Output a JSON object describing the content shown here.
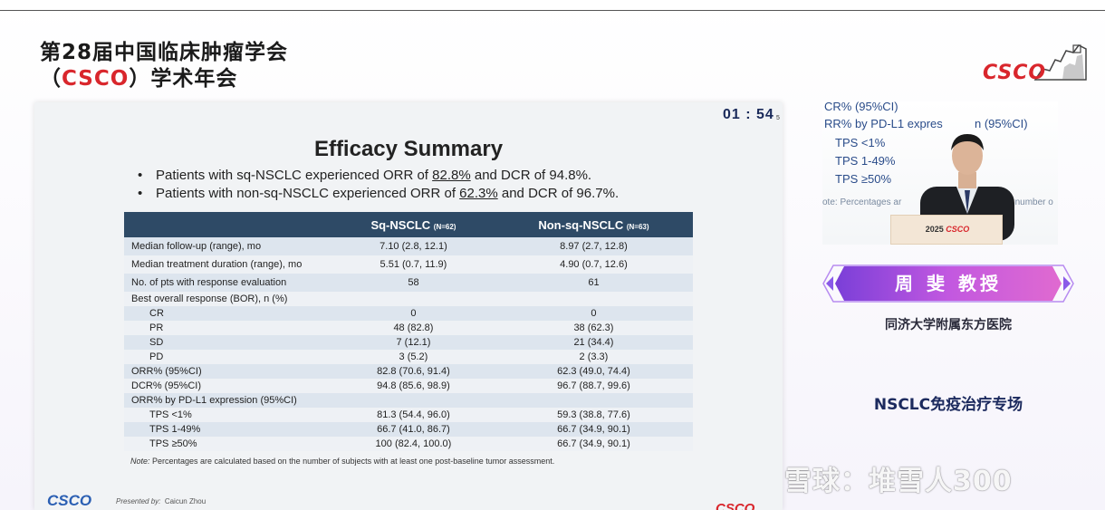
{
  "header": {
    "line1": "第28届中国临床肿瘤学会",
    "line2_paren_open": "（",
    "line2_brand": "CSCO",
    "line2_paren_close": "）",
    "line2_rest": "学术年会",
    "logo_text": "CSCO"
  },
  "slide": {
    "timer": "01 : 54",
    "timer_sub": "5",
    "title": "Efficacy Summary",
    "bullets": [
      {
        "pre": "Patients with sq-NSCLC experienced ORR of ",
        "orr": "82.8%",
        "post": " and DCR of 94.8%."
      },
      {
        "pre": "Patients with non-sq-NSCLC experienced ORR of ",
        "orr": "62.3%",
        "post": " and DCR of 96.7%."
      }
    ],
    "table": {
      "headers": {
        "col2": "Sq-NSCLC",
        "col2_n": "(N=62)",
        "col3": "Non-sq-NSCLC",
        "col3_n": "(N=63)"
      },
      "rows": [
        {
          "label": "Median follow-up (range), mo",
          "sq": "7.10 (2.8, 12.1)",
          "nonsq": "8.97 (2.7, 12.8)"
        },
        {
          "label": "Median treatment duration (range), mo",
          "sq": "5.51 (0.7, 11.9)",
          "nonsq": "4.90 (0.7, 12.6)"
        },
        {
          "label": "No. of pts with response evaluation",
          "sq": "58",
          "nonsq": "61"
        },
        {
          "label": "Best overall response (BOR), n (%)",
          "sq": "",
          "nonsq": ""
        },
        {
          "label": "CR",
          "sq": "0",
          "nonsq": "0"
        },
        {
          "label": "PR",
          "sq": "48 (82.8)",
          "nonsq": "38 (62.3)"
        },
        {
          "label": "SD",
          "sq": "7 (12.1)",
          "nonsq": "21 (34.4)"
        },
        {
          "label": "PD",
          "sq": "3 (5.2)",
          "nonsq": "2 (3.3)"
        },
        {
          "label": "ORR% (95%CI)",
          "sq": "82.8 (70.6, 91.4)",
          "nonsq": "62.3 (49.0, 74.4)"
        },
        {
          "label": "DCR% (95%CI)",
          "sq": "94.8 (85.6, 98.9)",
          "nonsq": "96.7 (88.7, 99.6)"
        },
        {
          "label": "ORR% by PD-L1 expression (95%CI)",
          "sq": "",
          "nonsq": ""
        },
        {
          "label": "TPS <1%",
          "sq": "81.3 (54.4, 96.0)",
          "nonsq": "59.3 (38.8, 77.6)"
        },
        {
          "label": "TPS 1-49%",
          "sq": "66.7 (41.0, 86.7)",
          "nonsq": "66.7 (34.9, 90.1)"
        },
        {
          "label": "TPS ≥50%",
          "sq": "100 (82.4, 100.0)",
          "nonsq": "66.7 (34.9, 90.1)"
        }
      ]
    },
    "note_label": "Note:",
    "note_text": " Percentages are calculated based on the number of subjects with at least one post-baseline tumor assessment.",
    "presented_by_label": "Presented by:",
    "presenter": "Caicun Zhou",
    "logo_left": "CSCO",
    "logo_right": "CSCO"
  },
  "camera": {
    "bg_lines": [
      "CR% (95%CI)",
      "RR% by PD-L1 expres",
      "n (95%CI)",
      "TPS <1%",
      "TPS 1-49%",
      "TPS ≥50%"
    ],
    "bg_note_a": "ote: Percentages ar",
    "bg_note_b": "on the number o",
    "podium_year": "2025",
    "podium_brand": "CSCO"
  },
  "speaker_name": "周 斐  教授",
  "hospital": "同济大学附属东方医院",
  "session": "NSCLC免疫治疗专场",
  "watermark": "雪球：堆雪人300",
  "colors": {
    "brand_red": "#d9262c",
    "table_header": "#2e4a66",
    "banner_purple": "#9b4fe0",
    "session_navy": "#1c2a5e"
  }
}
